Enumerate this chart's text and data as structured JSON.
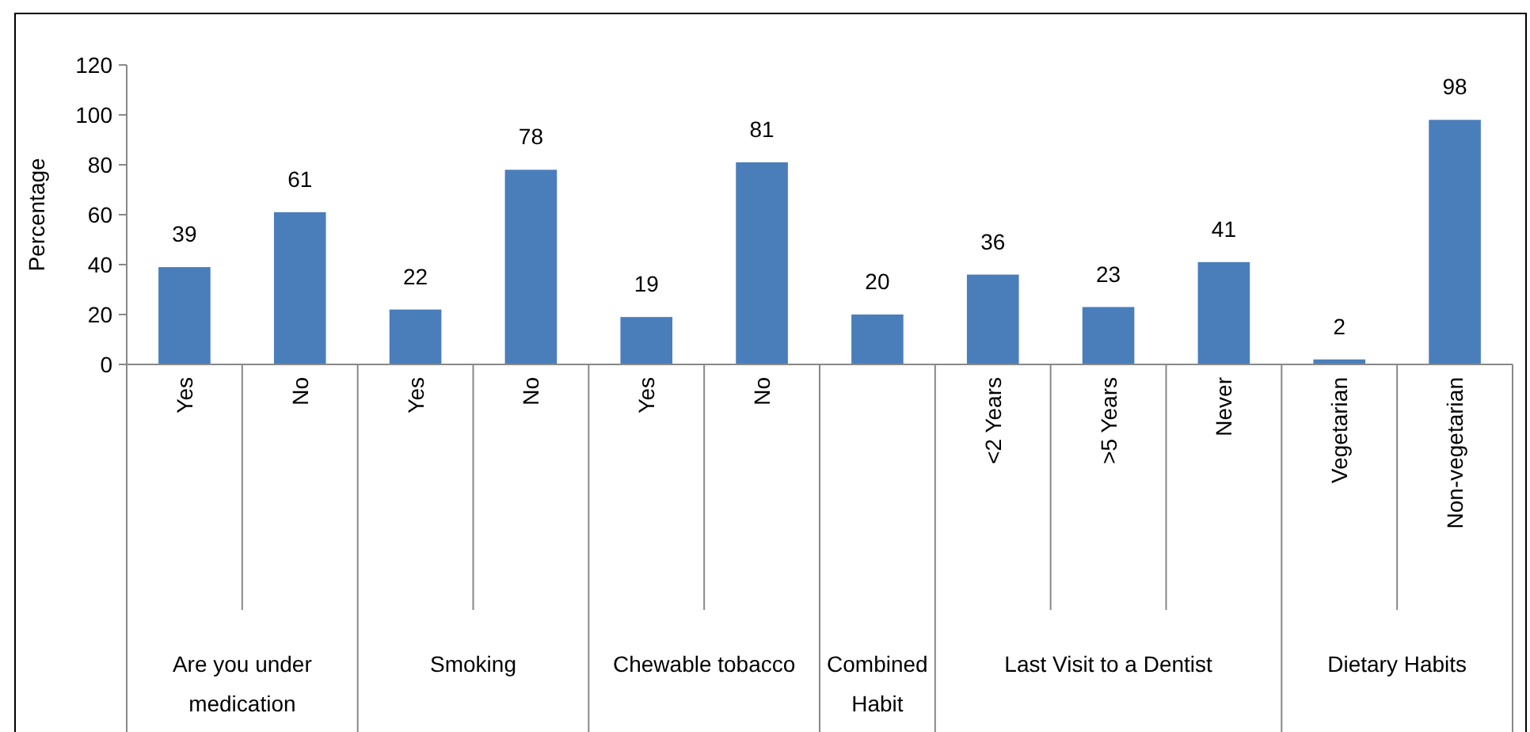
{
  "chart_data": {
    "type": "bar",
    "ylabel": "Percentage",
    "categories": [
      "Yes",
      "No",
      "Yes",
      "No",
      "Yes",
      "No",
      null,
      "<2 Years",
      ">5 Years",
      "Never",
      "Vegetarian",
      "Non-vegetarian"
    ],
    "values": [
      39,
      61,
      22,
      78,
      19,
      81,
      20,
      36,
      23,
      41,
      2,
      98
    ],
    "color": "#4a7ebb",
    "ylim": [
      0,
      120
    ],
    "yticks": [
      0,
      20,
      40,
      60,
      80,
      100,
      120
    ],
    "data_labels": true,
    "grid": false,
    "annotations": [
      "Are you under medication",
      "Smoking",
      "Chewable tobacco",
      "Combined Habit",
      "Last Visit to a Dentist",
      "Dietary Habits"
    ]
  }
}
